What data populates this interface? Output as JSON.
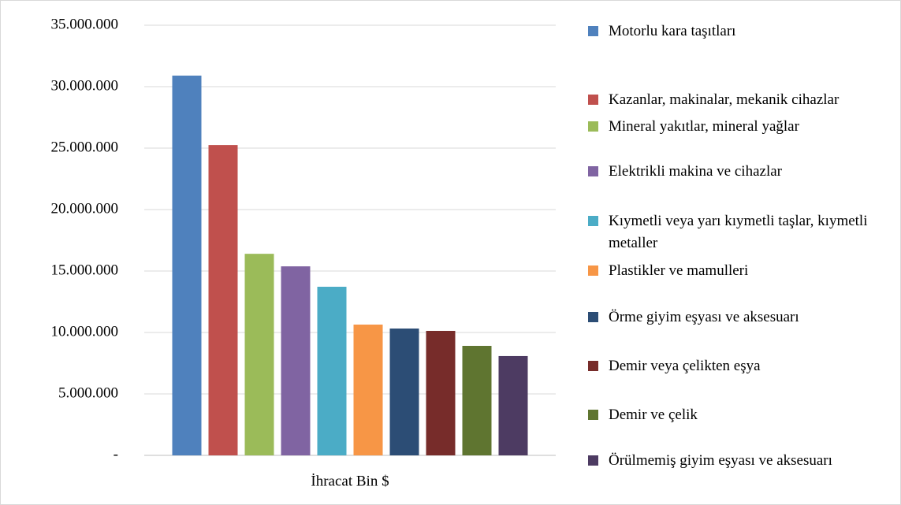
{
  "chart_data": {
    "type": "bar",
    "categories": [
      "İhracat Bin $"
    ],
    "series": [
      {
        "name": "Motorlu kara taşıtları",
        "color": "#4f81bd",
        "values": [
          30900000
        ]
      },
      {
        "name": "Kazanlar, makinalar, mekanik cihazlar",
        "color": "#c0504d",
        "values": [
          25250000
        ]
      },
      {
        "name": "Mineral yakıtlar, mineral yağlar",
        "color": "#9bbb59",
        "values": [
          16400000
        ]
      },
      {
        "name": "Elektrikli makina ve cihazlar",
        "color": "#8064a2",
        "values": [
          15380000
        ]
      },
      {
        "name": "Kıymetli veya yarı kıymetli taşlar, kıymetli metaller",
        "color": "#4bacc6",
        "values": [
          13720000
        ]
      },
      {
        "name": "Plastikler ve mamulleri",
        "color": "#f79646",
        "values": [
          10640000
        ]
      },
      {
        "name": "Örme giyim eşyası ve aksesuarı",
        "color": "#2c4d75",
        "values": [
          10320000
        ]
      },
      {
        "name": "Demir veya çelikten eşya",
        "color": "#772c2a",
        "values": [
          10130000
        ]
      },
      {
        "name": "Demir ve çelik",
        "color": "#5f7530",
        "values": [
          8910000
        ]
      },
      {
        "name": "Örülmemiş giyim eşyası ve aksesuarı",
        "color": "#4d3b62",
        "values": [
          8080000
        ]
      }
    ],
    "ylim": [
      0,
      35000000
    ],
    "yticks": [
      {
        "value": 0,
        "label": "-"
      },
      {
        "value": 5000000,
        "label": "5.000.000"
      },
      {
        "value": 10000000,
        "label": "10.000.000"
      },
      {
        "value": 15000000,
        "label": "15.000.000"
      },
      {
        "value": 20000000,
        "label": "20.000.000"
      },
      {
        "value": 25000000,
        "label": "25.000.000"
      },
      {
        "value": 30000000,
        "label": "30.000.000"
      },
      {
        "value": 35000000,
        "label": "35.000.000"
      }
    ],
    "grid": true,
    "legend": "right"
  }
}
